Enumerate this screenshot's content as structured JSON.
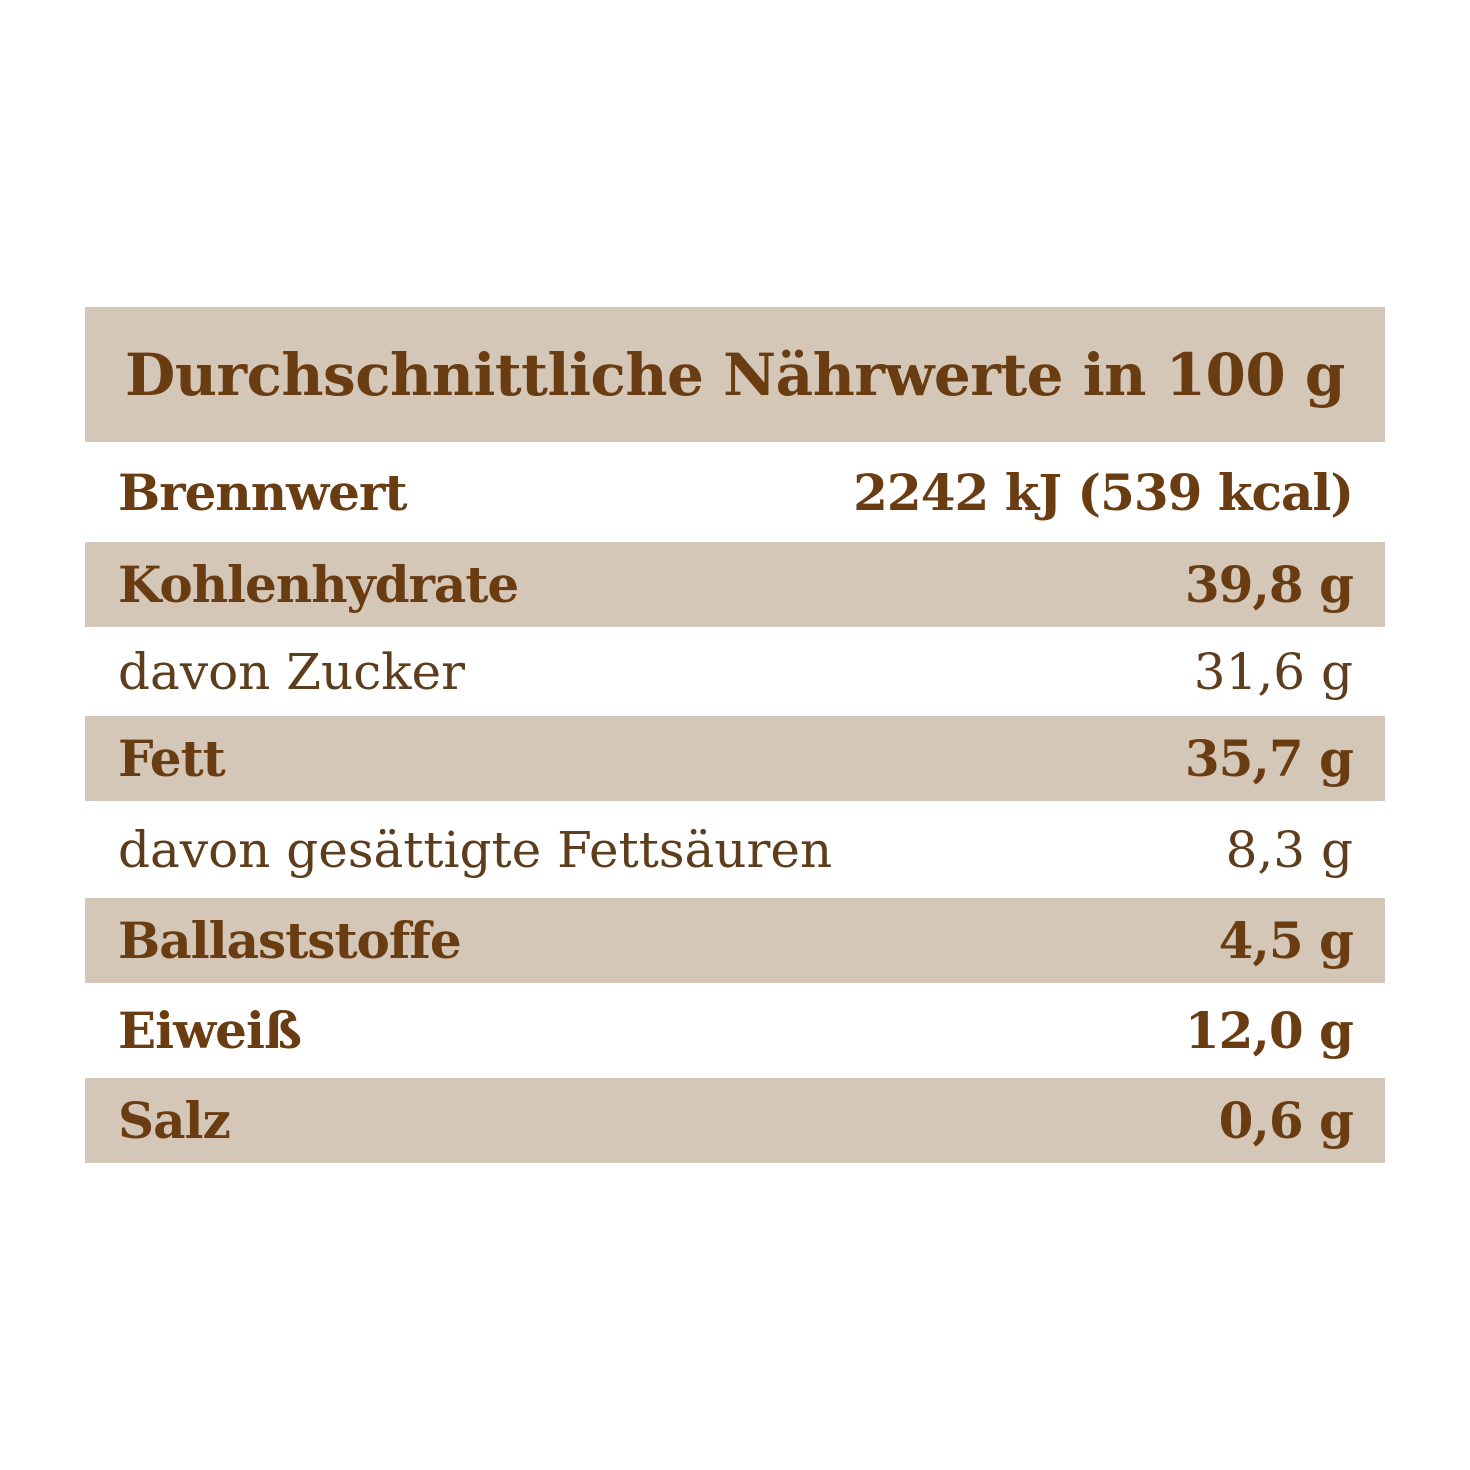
{
  "header": {
    "title": "Durchschnittliche Nährwerte in 100 g"
  },
  "table": {
    "rows": [
      [
        "Brennwert",
        "2242 kJ (539 kcal)"
      ],
      [
        "Kohlenhydrate",
        "39,8 g"
      ],
      [
        "davon Zucker",
        "31,6 g"
      ],
      [
        "Fett",
        "35,7 g"
      ],
      [
        "davon gesättigte Fettsäuren",
        "8,3 g"
      ],
      [
        "Ballaststoffe",
        "4,5 g"
      ],
      [
        "Eiweiß",
        "12,0 g"
      ],
      [
        "Salz",
        "0,6 g"
      ]
    ]
  }
}
